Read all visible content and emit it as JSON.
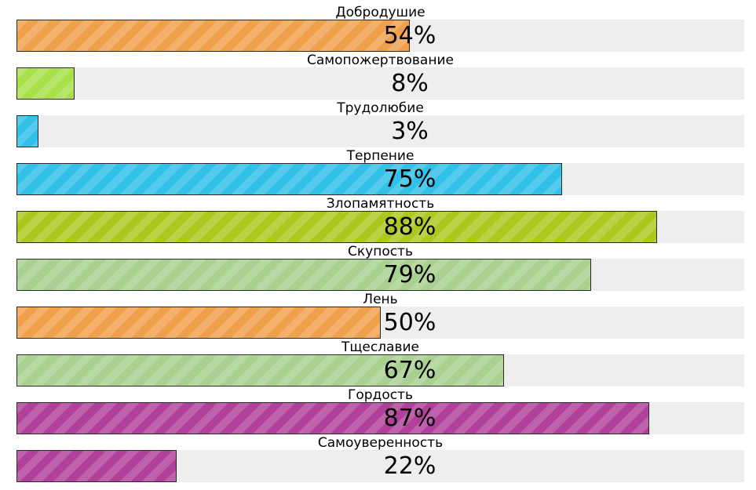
{
  "chart_data": {
    "type": "bar",
    "orientation": "horizontal",
    "max": 100,
    "unit": "%",
    "categories": [
      "Добродушие",
      "Самопожертвование",
      "Трудолюбие",
      "Терпение",
      "Злопамятность",
      "Скупость",
      "Лень",
      "Тщеславие",
      "Гордость",
      "Самоуверенность"
    ],
    "values": [
      54,
      8,
      3,
      75,
      88,
      79,
      50,
      67,
      87,
      22
    ],
    "value_labels": [
      "54%",
      "8%",
      "3%",
      "75%",
      "88%",
      "79%",
      "50%",
      "67%",
      "87%",
      "22%"
    ],
    "colors": [
      "#f0a04a",
      "#a8e04a",
      "#30c0e8",
      "#30c0e8",
      "#acc81e",
      "#a8d090",
      "#f0a04a",
      "#a8d090",
      "#b0409a",
      "#b0409a"
    ],
    "track_color": "#eeeeee",
    "title": "",
    "xlabel": "",
    "ylabel": ""
  }
}
